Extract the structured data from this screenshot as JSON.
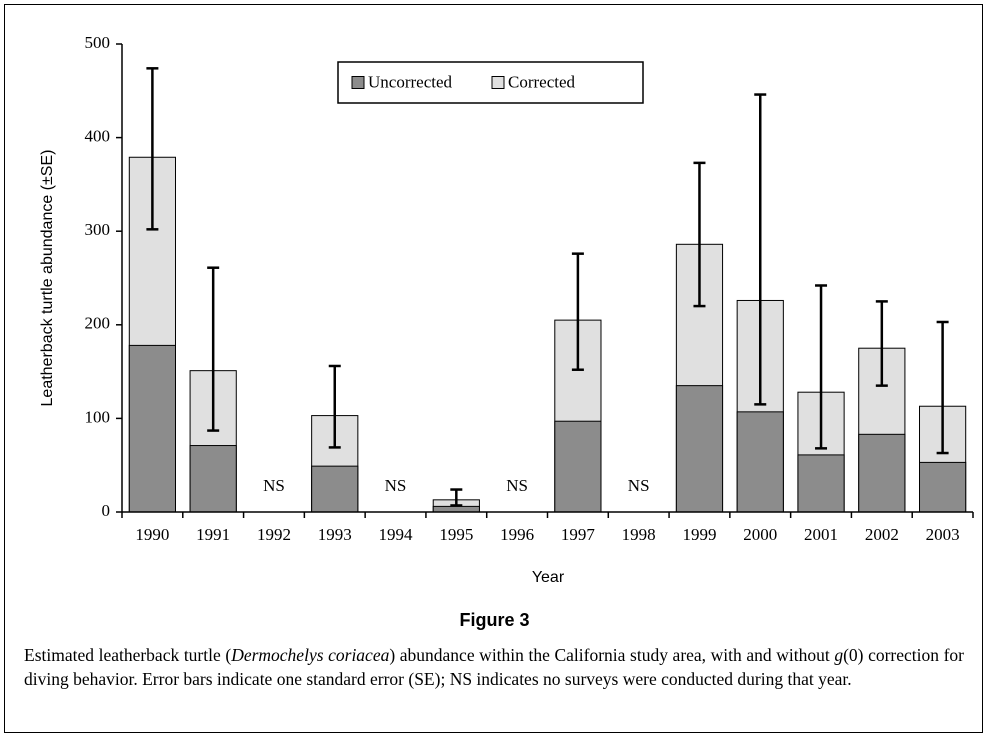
{
  "chart_data": {
    "type": "bar",
    "x_label": "Year",
    "y_label": "Leatherback turtle abundance (±SE)",
    "categories": [
      "1990",
      "1991",
      "1992",
      "1993",
      "1994",
      "1995",
      "1996",
      "1997",
      "1998",
      "1999",
      "2000",
      "2001",
      "2002",
      "2003"
    ],
    "series": [
      {
        "name": "Uncorrected",
        "color": "#8c8c8c",
        "values": [
          178,
          71,
          null,
          49,
          null,
          6,
          null,
          97,
          null,
          135,
          107,
          61,
          83,
          53
        ]
      },
      {
        "name": "Corrected",
        "color": "#e0e0e0",
        "values": [
          379,
          151,
          null,
          103,
          null,
          13,
          null,
          205,
          null,
          286,
          226,
          128,
          175,
          113
        ],
        "error_low": [
          302,
          87,
          null,
          69,
          null,
          7,
          null,
          152,
          null,
          220,
          115,
          68,
          135,
          63
        ],
        "error_high": [
          474,
          261,
          null,
          156,
          null,
          24,
          null,
          276,
          null,
          373,
          446,
          242,
          225,
          203
        ]
      }
    ],
    "annotations": [
      {
        "text": "NS",
        "x": "1992"
      },
      {
        "text": "NS",
        "x": "1994"
      },
      {
        "text": "NS",
        "x": "1996"
      },
      {
        "text": "NS",
        "x": "1998"
      }
    ],
    "ylim": [
      0,
      500
    ],
    "yticks": [
      0,
      100,
      200,
      300,
      400,
      500
    ],
    "legend": "top-center"
  },
  "figure_label": "Figure 3",
  "caption": [
    {
      "text": "Estimated leatherback turtle ("
    },
    {
      "text": "Dermochelys coriacea",
      "italic": true
    },
    {
      "text": ") abundance within the California study area, with and without "
    },
    {
      "text": "g",
      "italic": true
    },
    {
      "text": "(0) correction for diving behavior. Error bars indicate one standard error (SE); NS indicates no surveys were conducted during that year."
    }
  ]
}
